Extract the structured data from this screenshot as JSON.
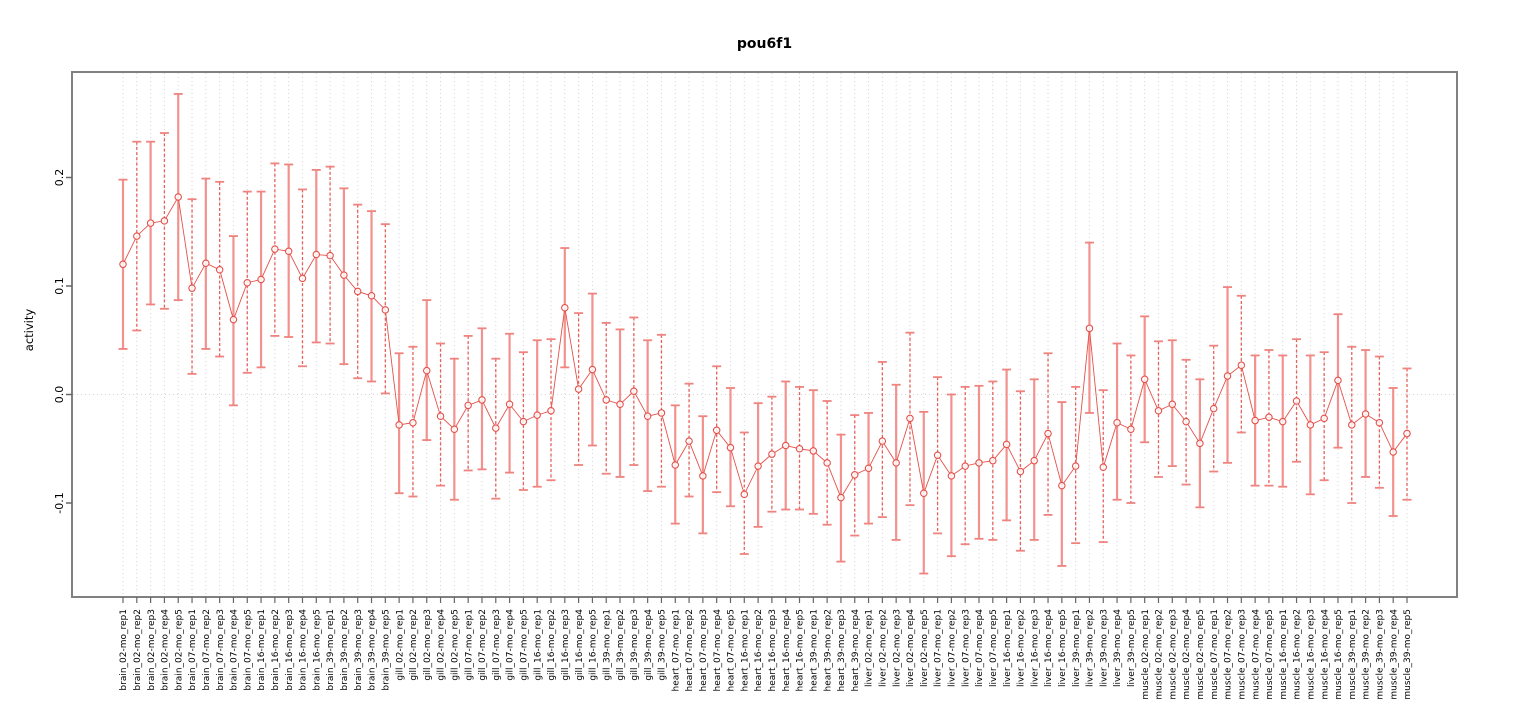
{
  "chart_data": {
    "type": "line",
    "title": "pou6f1",
    "xlabel": "",
    "ylabel": "activity",
    "ylim": [
      -0.186,
      0.297
    ],
    "y_ticks": [
      {
        "value": 0.2,
        "label": "0.2"
      },
      {
        "value": 0.1,
        "label": "0.1"
      },
      {
        "value": 0.0,
        "label": "0.0"
      },
      {
        "value": -0.1,
        "label": "-0.1"
      }
    ],
    "grid": "dotted vertical line per sample, dotted horizontal line at 0",
    "legend_position": "none",
    "point_style": "open circle with error bars, connected by line",
    "colors": {
      "bar_solid": "#f2928e",
      "bar_dashed": "#e8605a",
      "cap": "#ef837f",
      "point_line": "#e4514b",
      "grid": "#d4d4d4",
      "box": "#808080",
      "tick": "#666666",
      "text": "#000000"
    },
    "samples": [
      {
        "label": "brain_02-mo_rep1",
        "value": 0.12,
        "lo": 0.042,
        "hi": 0.198
      },
      {
        "label": "brain_02-mo_rep2",
        "value": 0.146,
        "lo": 0.059,
        "hi": 0.233
      },
      {
        "label": "brain_02-mo_rep3",
        "value": 0.158,
        "lo": 0.083,
        "hi": 0.233
      },
      {
        "label": "brain_02-mo_rep4",
        "value": 0.16,
        "lo": 0.079,
        "hi": 0.241
      },
      {
        "label": "brain_02-mo_rep5",
        "value": 0.182,
        "lo": 0.087,
        "hi": 0.277
      },
      {
        "label": "brain_07-mo_rep1",
        "value": 0.098,
        "lo": 0.019,
        "hi": 0.18
      },
      {
        "label": "brain_07-mo_rep2",
        "value": 0.121,
        "lo": 0.042,
        "hi": 0.199
      },
      {
        "label": "brain_07-mo_rep3",
        "value": 0.115,
        "lo": 0.035,
        "hi": 0.196
      },
      {
        "label": "brain_07-mo_rep4",
        "value": 0.069,
        "lo": -0.01,
        "hi": 0.146
      },
      {
        "label": "brain_07-mo_rep5",
        "value": 0.103,
        "lo": 0.02,
        "hi": 0.187
      },
      {
        "label": "brain_16-mo_rep1",
        "value": 0.106,
        "lo": 0.025,
        "hi": 0.187
      },
      {
        "label": "brain_16-mo_rep2",
        "value": 0.134,
        "lo": 0.054,
        "hi": 0.213
      },
      {
        "label": "brain_16-mo_rep3",
        "value": 0.132,
        "lo": 0.053,
        "hi": 0.212
      },
      {
        "label": "brain_16-mo_rep4",
        "value": 0.107,
        "lo": 0.026,
        "hi": 0.189
      },
      {
        "label": "brain_16-mo_rep5",
        "value": 0.129,
        "lo": 0.048,
        "hi": 0.207
      },
      {
        "label": "brain_39-mo_rep1",
        "value": 0.128,
        "lo": 0.047,
        "hi": 0.21
      },
      {
        "label": "brain_39-mo_rep2",
        "value": 0.11,
        "lo": 0.028,
        "hi": 0.19
      },
      {
        "label": "brain_39-mo_rep3",
        "value": 0.095,
        "lo": 0.015,
        "hi": 0.175
      },
      {
        "label": "brain_39-mo_rep4",
        "value": 0.091,
        "lo": 0.012,
        "hi": 0.169
      },
      {
        "label": "brain_39-mo_rep5",
        "value": 0.078,
        "lo": 0.001,
        "hi": 0.157
      },
      {
        "label": "gill_02-mo_rep1",
        "value": -0.028,
        "lo": -0.091,
        "hi": 0.038
      },
      {
        "label": "gill_02-mo_rep2",
        "value": -0.026,
        "lo": -0.094,
        "hi": 0.044
      },
      {
        "label": "gill_02-mo_rep3",
        "value": 0.022,
        "lo": -0.042,
        "hi": 0.087
      },
      {
        "label": "gill_02-mo_rep4",
        "value": -0.02,
        "lo": -0.084,
        "hi": 0.047
      },
      {
        "label": "gill_02-mo_rep5",
        "value": -0.032,
        "lo": -0.097,
        "hi": 0.033
      },
      {
        "label": "gill_07-mo_rep1",
        "value": -0.01,
        "lo": -0.07,
        "hi": 0.054
      },
      {
        "label": "gill_07-mo_rep2",
        "value": -0.005,
        "lo": -0.069,
        "hi": 0.061
      },
      {
        "label": "gill_07-mo_rep3",
        "value": -0.031,
        "lo": -0.096,
        "hi": 0.033
      },
      {
        "label": "gill_07-mo_rep4",
        "value": -0.009,
        "lo": -0.072,
        "hi": 0.056
      },
      {
        "label": "gill_07-mo_rep5",
        "value": -0.025,
        "lo": -0.088,
        "hi": 0.039
      },
      {
        "label": "gill_16-mo_rep1",
        "value": -0.019,
        "lo": -0.085,
        "hi": 0.05
      },
      {
        "label": "gill_16-mo_rep2",
        "value": -0.015,
        "lo": -0.079,
        "hi": 0.051
      },
      {
        "label": "gill_16-mo_rep3",
        "value": 0.08,
        "lo": 0.025,
        "hi": 0.135
      },
      {
        "label": "gill_16-mo_rep4",
        "value": 0.005,
        "lo": -0.065,
        "hi": 0.075
      },
      {
        "label": "gill_16-mo_rep5",
        "value": 0.023,
        "lo": -0.047,
        "hi": 0.093
      },
      {
        "label": "gill_39-mo_rep1",
        "value": -0.005,
        "lo": -0.073,
        "hi": 0.066
      },
      {
        "label": "gill_39-mo_rep2",
        "value": -0.009,
        "lo": -0.076,
        "hi": 0.06
      },
      {
        "label": "gill_39-mo_rep3",
        "value": 0.003,
        "lo": -0.065,
        "hi": 0.071
      },
      {
        "label": "gill_39-mo_rep4",
        "value": -0.02,
        "lo": -0.089,
        "hi": 0.05
      },
      {
        "label": "gill_39-mo_rep5",
        "value": -0.017,
        "lo": -0.085,
        "hi": 0.055
      },
      {
        "label": "heart_07-mo_rep1",
        "value": -0.065,
        "lo": -0.119,
        "hi": -0.01
      },
      {
        "label": "heart_07-mo_rep2",
        "value": -0.043,
        "lo": -0.094,
        "hi": 0.01
      },
      {
        "label": "heart_07-mo_rep3",
        "value": -0.075,
        "lo": -0.128,
        "hi": -0.02
      },
      {
        "label": "heart_07-mo_rep4",
        "value": -0.033,
        "lo": -0.09,
        "hi": 0.026
      },
      {
        "label": "heart_07-mo_rep5",
        "value": -0.049,
        "lo": -0.103,
        "hi": 0.006
      },
      {
        "label": "heart_16-mo_rep1",
        "value": -0.092,
        "lo": -0.147,
        "hi": -0.035
      },
      {
        "label": "heart_16-mo_rep2",
        "value": -0.066,
        "lo": -0.122,
        "hi": -0.008
      },
      {
        "label": "heart_16-mo_rep3",
        "value": -0.055,
        "lo": -0.108,
        "hi": -0.002
      },
      {
        "label": "heart_16-mo_rep4",
        "value": -0.047,
        "lo": -0.106,
        "hi": 0.012
      },
      {
        "label": "heart_16-mo_rep5",
        "value": -0.05,
        "lo": -0.106,
        "hi": 0.007
      },
      {
        "label": "heart_39-mo_rep1",
        "value": -0.052,
        "lo": -0.11,
        "hi": 0.004
      },
      {
        "label": "heart_39-mo_rep2",
        "value": -0.063,
        "lo": -0.12,
        "hi": -0.006
      },
      {
        "label": "heart_39-mo_rep3",
        "value": -0.095,
        "lo": -0.154,
        "hi": -0.037
      },
      {
        "label": "heart_39-mo_rep4",
        "value": -0.074,
        "lo": -0.13,
        "hi": -0.019
      },
      {
        "label": "liver_02-mo_rep1",
        "value": -0.068,
        "lo": -0.119,
        "hi": -0.017
      },
      {
        "label": "liver_02-mo_rep2",
        "value": -0.043,
        "lo": -0.113,
        "hi": 0.03
      },
      {
        "label": "liver_02-mo_rep3",
        "value": -0.063,
        "lo": -0.134,
        "hi": 0.009
      },
      {
        "label": "liver_02-mo_rep4",
        "value": -0.022,
        "lo": -0.102,
        "hi": 0.057
      },
      {
        "label": "liver_02-mo_rep5",
        "value": -0.091,
        "lo": -0.165,
        "hi": -0.016
      },
      {
        "label": "liver_07-mo_rep1",
        "value": -0.056,
        "lo": -0.128,
        "hi": 0.016
      },
      {
        "label": "liver_07-mo_rep2",
        "value": -0.075,
        "lo": -0.149,
        "hi": 0.0
      },
      {
        "label": "liver_07-mo_rep3",
        "value": -0.066,
        "lo": -0.138,
        "hi": 0.007
      },
      {
        "label": "liver_07-mo_rep4",
        "value": -0.063,
        "lo": -0.133,
        "hi": 0.008
      },
      {
        "label": "liver_07-mo_rep5",
        "value": -0.061,
        "lo": -0.134,
        "hi": 0.012
      },
      {
        "label": "liver_16-mo_rep1",
        "value": -0.046,
        "lo": -0.116,
        "hi": 0.023
      },
      {
        "label": "liver_16-mo_rep2",
        "value": -0.071,
        "lo": -0.144,
        "hi": 0.003
      },
      {
        "label": "liver_16-mo_rep3",
        "value": -0.061,
        "lo": -0.134,
        "hi": 0.014
      },
      {
        "label": "liver_16-mo_rep4",
        "value": -0.036,
        "lo": -0.111,
        "hi": 0.038
      },
      {
        "label": "liver_16-mo_rep5",
        "value": -0.084,
        "lo": -0.158,
        "hi": -0.007
      },
      {
        "label": "liver_39-mo_rep1",
        "value": -0.066,
        "lo": -0.137,
        "hi": 0.007
      },
      {
        "label": "liver_39-mo_rep2",
        "value": 0.061,
        "lo": -0.017,
        "hi": 0.14
      },
      {
        "label": "liver_39-mo_rep3",
        "value": -0.067,
        "lo": -0.136,
        "hi": 0.004
      },
      {
        "label": "liver_39-mo_rep4",
        "value": -0.026,
        "lo": -0.097,
        "hi": 0.047
      },
      {
        "label": "liver_39-mo_rep5",
        "value": -0.032,
        "lo": -0.1,
        "hi": 0.036
      },
      {
        "label": "muscle_02-mo_rep1",
        "value": 0.014,
        "lo": -0.044,
        "hi": 0.072
      },
      {
        "label": "muscle_02-mo_rep2",
        "value": -0.015,
        "lo": -0.076,
        "hi": 0.049
      },
      {
        "label": "muscle_02-mo_rep3",
        "value": -0.009,
        "lo": -0.066,
        "hi": 0.05
      },
      {
        "label": "muscle_02-mo_rep4",
        "value": -0.025,
        "lo": -0.083,
        "hi": 0.032
      },
      {
        "label": "muscle_02-mo_rep5",
        "value": -0.045,
        "lo": -0.104,
        "hi": 0.014
      },
      {
        "label": "muscle_07-mo_rep1",
        "value": -0.013,
        "lo": -0.071,
        "hi": 0.045
      },
      {
        "label": "muscle_07-mo_rep2",
        "value": 0.017,
        "lo": -0.063,
        "hi": 0.099
      },
      {
        "label": "muscle_07-mo_rep3",
        "value": 0.027,
        "lo": -0.035,
        "hi": 0.091
      },
      {
        "label": "muscle_07-mo_rep4",
        "value": -0.024,
        "lo": -0.084,
        "hi": 0.036
      },
      {
        "label": "muscle_07-mo_rep5",
        "value": -0.021,
        "lo": -0.084,
        "hi": 0.041
      },
      {
        "label": "muscle_16-mo_rep1",
        "value": -0.025,
        "lo": -0.085,
        "hi": 0.036
      },
      {
        "label": "muscle_16-mo_rep2",
        "value": -0.006,
        "lo": -0.062,
        "hi": 0.051
      },
      {
        "label": "muscle_16-mo_rep3",
        "value": -0.028,
        "lo": -0.092,
        "hi": 0.036
      },
      {
        "label": "muscle_16-mo_rep4",
        "value": -0.022,
        "lo": -0.079,
        "hi": 0.039
      },
      {
        "label": "muscle_16-mo_rep5",
        "value": 0.013,
        "lo": -0.049,
        "hi": 0.074
      },
      {
        "label": "muscle_39-mo_rep1",
        "value": -0.028,
        "lo": -0.1,
        "hi": 0.044
      },
      {
        "label": "muscle_39-mo_rep2",
        "value": -0.018,
        "lo": -0.076,
        "hi": 0.041
      },
      {
        "label": "muscle_39-mo_rep3",
        "value": -0.026,
        "lo": -0.086,
        "hi": 0.035
      },
      {
        "label": "muscle_39-mo_rep4",
        "value": -0.053,
        "lo": -0.112,
        "hi": 0.006
      },
      {
        "label": "muscle_39-mo_rep5",
        "value": -0.036,
        "lo": -0.097,
        "hi": 0.024
      }
    ]
  }
}
